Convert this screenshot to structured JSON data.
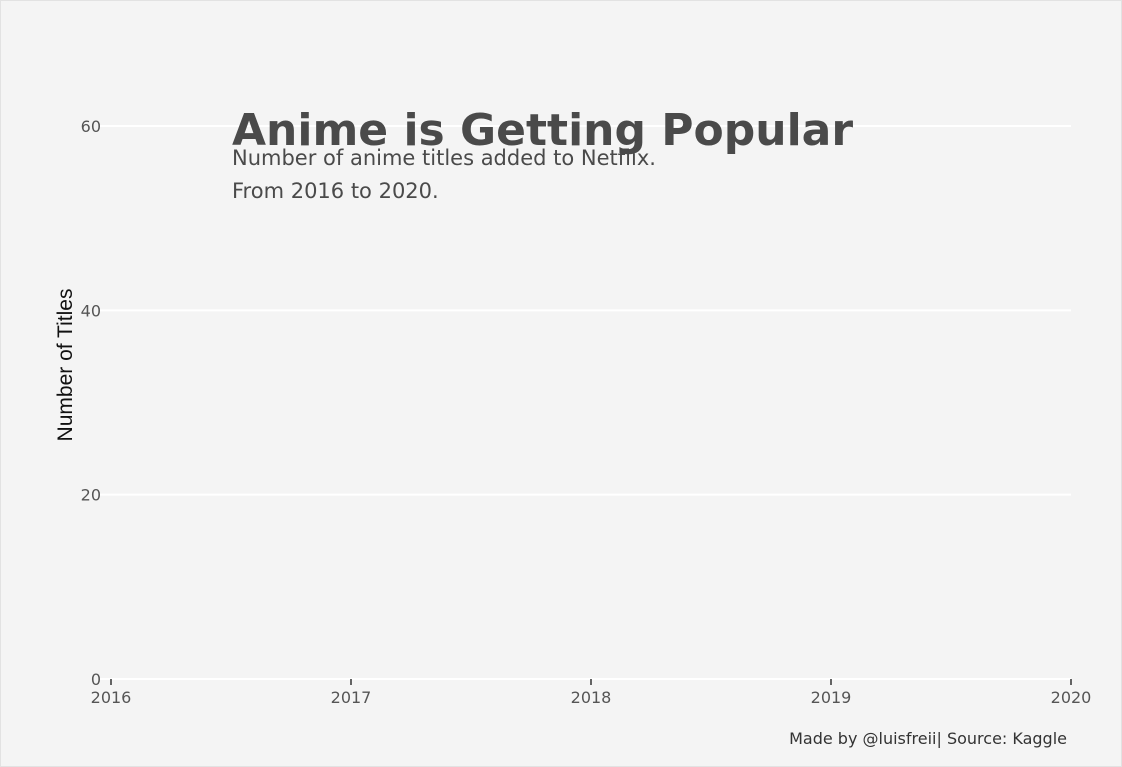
{
  "chart_data": {
    "type": "line",
    "title": "Anime is Getting Popular",
    "subtitle_lines": [
      "Number of anime titles added to Netflix.",
      "From 2016 to 2020."
    ],
    "xlabel": "",
    "ylabel": "Number of Titles",
    "x_ticks": [
      "2016",
      "2017",
      "2018",
      "2019",
      "2020"
    ],
    "y_ticks": [
      "0",
      "20",
      "40",
      "60"
    ],
    "xlim": [
      2016,
      2020
    ],
    "ylim": [
      0,
      60
    ],
    "grid": true,
    "legend": "none",
    "series": [],
    "caption": "Made by @luisfreii| Source: Kaggle",
    "colors": {
      "background": "#f4f4f4",
      "grid": "#ffffff",
      "text": "#4a4a4a"
    }
  }
}
